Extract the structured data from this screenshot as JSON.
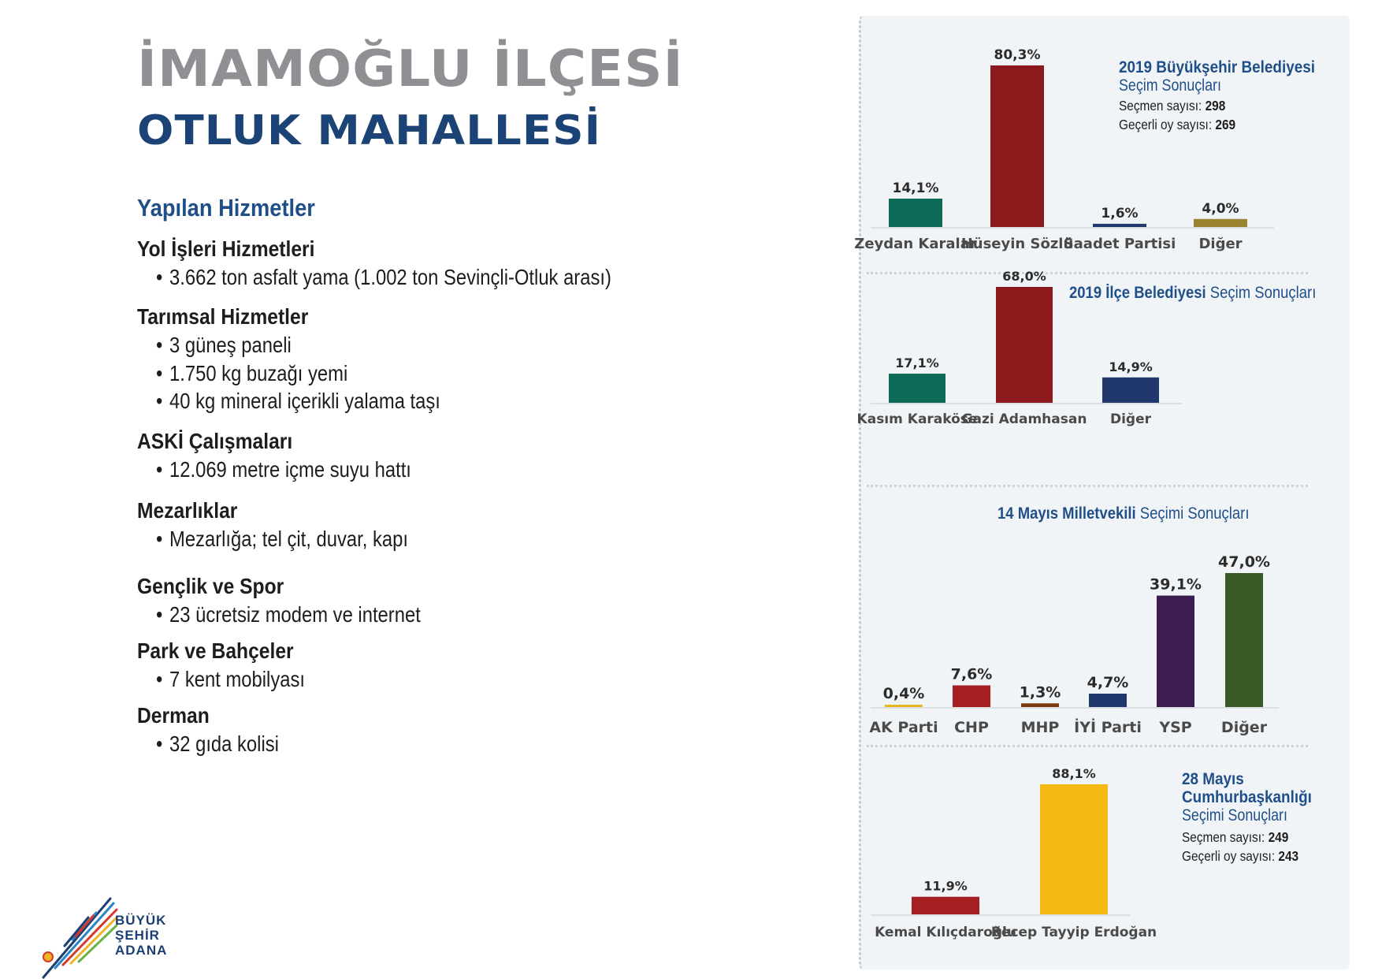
{
  "page": {
    "title_line1": "İMAMOĞLU İLÇESİ",
    "title_line2": "OTLUK MAHALLESİ",
    "services_heading": "Yapılan Hizmetler"
  },
  "sections": [
    {
      "title": "Yol İşleri Hizmetleri",
      "items": [
        "3.662 ton asfalt yama (1.002 ton Sevinçli-Otluk arası)"
      ]
    },
    {
      "title": "Tarımsal Hizmetler",
      "items": [
        "3 güneş paneli",
        "1.750 kg buzağı yemi",
        "40 kg mineral içerikli yalama taşı"
      ]
    },
    {
      "title": "ASKİ Çalışmaları",
      "items": [
        "12.069 metre içme suyu hattı"
      ]
    },
    {
      "title": "Mezarlıklar",
      "items": [
        "Mezarlığa; tel çit, duvar, kapı"
      ]
    },
    {
      "title": "Gençlik ve Spor",
      "items": [
        "23 ücretsiz modem ve internet"
      ]
    },
    {
      "title": "Park ve Bahçeler",
      "items": [
        "7 kent mobilyası"
      ]
    },
    {
      "title": "Derman",
      "items": [
        "32 gıda kolisi"
      ]
    }
  ],
  "logo": {
    "line1": "BÜYÜK",
    "line2": "ŞEHİR",
    "line3": "ADANA"
  },
  "info": {
    "c1": {
      "title_bold": "2019 Büyükşehir Belediyesi",
      "title_norm": "Seçim Sonuçları",
      "voters_label": "Seçmen sayısı:",
      "voters_value": "298",
      "valid_label": "Geçerli oy sayısı:",
      "valid_value": "269"
    },
    "c2": {
      "title_bold": "2019 İlçe Belediyesi",
      "title_norm": "Seçim Sonuçları"
    },
    "c3": {
      "title_bold": "14 Mayıs Milletvekili",
      "title_norm": "Seçimi Sonuçları"
    },
    "c4": {
      "title_bold1": "28 Mayıs",
      "title_bold2": "Cumhurbaşkanlığı",
      "title_norm": "Seçimi Sonuçları",
      "voters_label": "Seçmen sayısı:",
      "voters_value": "249",
      "valid_label": "Geçerli oy sayısı:",
      "valid_value": "243"
    }
  },
  "chart_data": [
    {
      "type": "bar",
      "title": "2019 Büyükşehir Belediyesi Seçim Sonuçları",
      "categories": [
        "Zeydan Karalar",
        "Hüseyin Sözlü",
        "Saadet Partisi",
        "Diğer"
      ],
      "values": [
        14.1,
        80.3,
        1.6,
        4.0
      ],
      "labels": [
        "14,1%",
        "80,3%",
        "1,6%",
        "4,0%"
      ],
      "colors": [
        "#0e6b58",
        "#8c1a1d",
        "#20386b",
        "#9a8430"
      ]
    },
    {
      "type": "bar",
      "title": "2019 İlçe Belediyesi Seçim Sonuçları",
      "categories": [
        "Kasım Karaköse",
        "Gazi Adamhasan",
        "Diğer"
      ],
      "values": [
        17.1,
        68.0,
        14.9
      ],
      "labels": [
        "17,1%",
        "68,0%",
        "14,9%"
      ],
      "colors": [
        "#0e6b58",
        "#8c1a1d",
        "#20386b"
      ]
    },
    {
      "type": "bar",
      "title": "14 Mayıs Milletvekili Seçimi Sonuçları",
      "categories": [
        "AK Parti",
        "CHP",
        "MHP",
        "İYİ Parti",
        "YSP",
        "Diğer"
      ],
      "values": [
        0.4,
        7.6,
        1.3,
        4.7,
        39.1,
        47.0
      ],
      "labels": [
        "0,4%",
        "7,6%",
        "1,3%",
        "4,7%",
        "39,1%",
        "47,0%"
      ],
      "colors": [
        "#e6b820",
        "#a51e22",
        "#7a3a12",
        "#20386b",
        "#3b1d52",
        "#3a5a26"
      ]
    },
    {
      "type": "bar",
      "title": "28 Mayıs Cumhurbaşkanlığı Seçimi Sonuçları",
      "categories": [
        "Kemal Kılıçdaroğlu",
        "Recep Tayyip Erdoğan"
      ],
      "values": [
        11.9,
        88.1
      ],
      "labels": [
        "11,9%",
        "88,1%"
      ],
      "colors": [
        "#a51e22",
        "#f5b914"
      ]
    }
  ]
}
